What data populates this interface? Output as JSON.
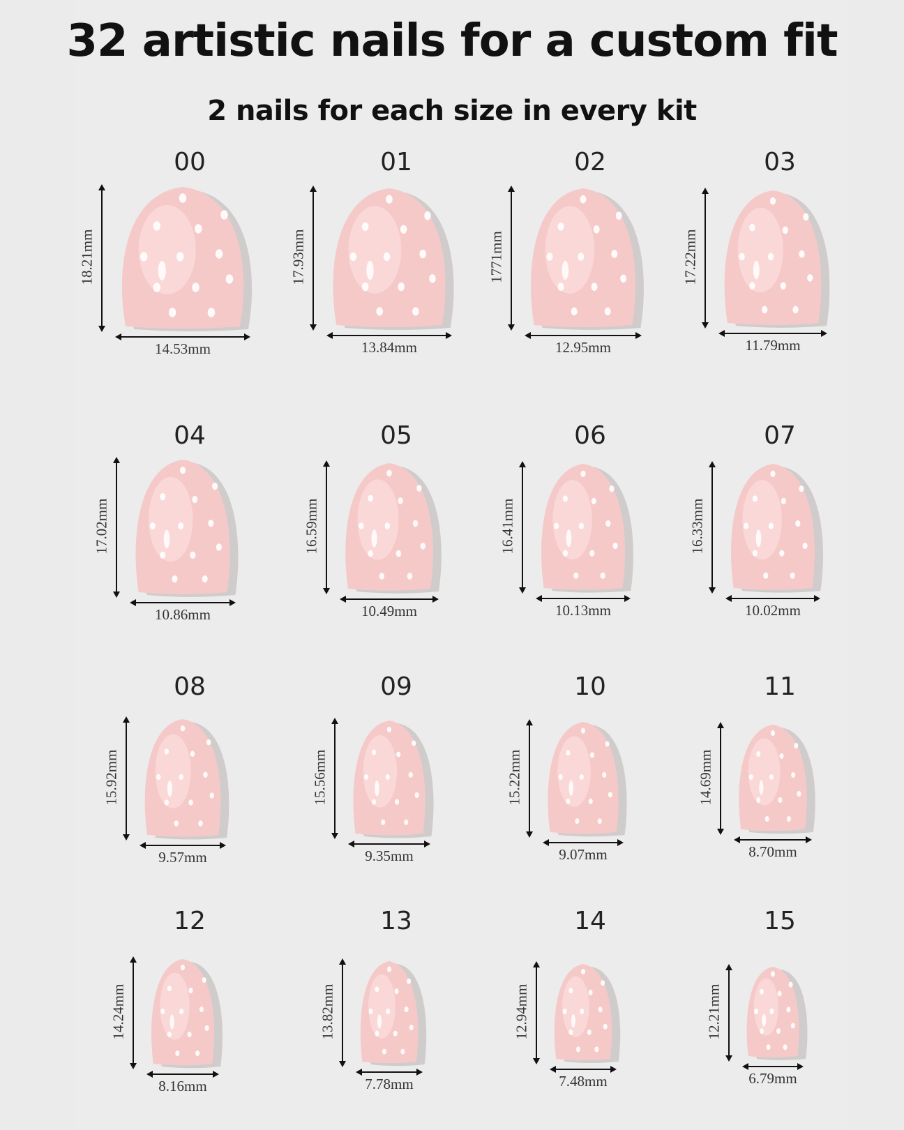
{
  "title": "32 artistic nails for a custom fit",
  "subtitle": "2 nails for each size in every kit",
  "colors": {
    "background": "#ebebeb",
    "nail_fill": "#f6c9c9",
    "nail_highlight": "#fde4e2",
    "dot": "#ffffff",
    "shadow": "#b9b2b2",
    "text": "#111111"
  },
  "nails": [
    {
      "size": "00",
      "length": "18.21mm",
      "width": "14.53mm"
    },
    {
      "size": "01",
      "length": "17.93mm",
      "width": "13.84mm"
    },
    {
      "size": "02",
      "length": "1771mm",
      "width": "12.95mm"
    },
    {
      "size": "03",
      "length": "17.22mm",
      "width": "11.79mm"
    },
    {
      "size": "04",
      "length": "17.02mm",
      "width": "10.86mm"
    },
    {
      "size": "05",
      "length": "16.59mm",
      "width": "10.49mm"
    },
    {
      "size": "06",
      "length": "16.41mm",
      "width": "10.13mm"
    },
    {
      "size": "07",
      "length": "16.33mm",
      "width": "10.02mm"
    },
    {
      "size": "08",
      "length": "15.92mm",
      "width": "9.57mm"
    },
    {
      "size": "09",
      "length": "15.56mm",
      "width": "9.35mm"
    },
    {
      "size": "10",
      "length": "15.22mm",
      "width": "9.07mm"
    },
    {
      "size": "11",
      "length": "14.69mm",
      "width": "8.70mm"
    },
    {
      "size": "12",
      "length": "14.24mm",
      "width": "8.16mm"
    },
    {
      "size": "13",
      "length": "13.82mm",
      "width": "7.78mm"
    },
    {
      "size": "14",
      "length": "12.94mm",
      "width": "7.48mm"
    },
    {
      "size": "15",
      "length": "12.21mm",
      "width": "6.79mm"
    }
  ]
}
